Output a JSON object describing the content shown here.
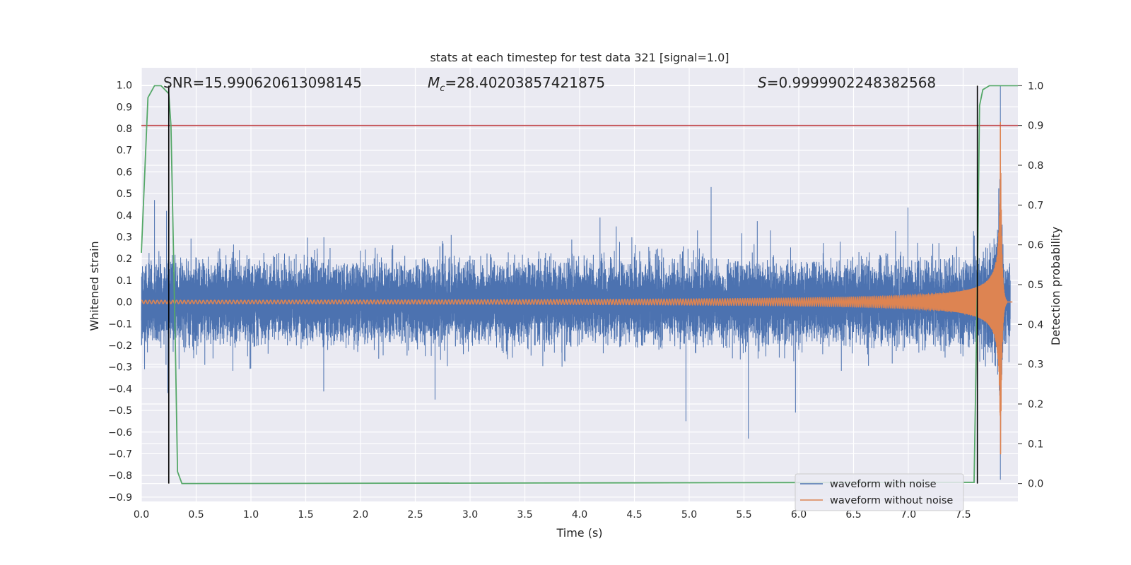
{
  "chart_data": {
    "type": "line",
    "title": "stats at each timestep for test data 321 [signal=1.0]",
    "xlabel": "Time (s)",
    "ylabel": "Whitened strain",
    "y2label": "Detection probability",
    "xlim": [
      0.0,
      8.0
    ],
    "ylim": [
      -0.92,
      1.08
    ],
    "y2lim": [
      -0.045,
      1.045
    ],
    "grid": true,
    "x_ticks": [
      "0.0",
      "0.5",
      "1.0",
      "1.5",
      "2.0",
      "2.5",
      "3.0",
      "3.5",
      "4.0",
      "4.5",
      "5.0",
      "5.5",
      "6.0",
      "6.5",
      "7.0",
      "7.5"
    ],
    "y_ticks": [
      "1.0",
      "0.9",
      "0.8",
      "0.7",
      "0.6",
      "0.5",
      "0.4",
      "0.3",
      "0.2",
      "0.1",
      "0.0",
      "−0.1",
      "−0.2",
      "−0.3",
      "−0.4",
      "−0.5",
      "−0.6",
      "−0.7",
      "−0.8",
      "−0.9"
    ],
    "y2_ticks": [
      "1.0",
      "0.9",
      "0.8",
      "0.7",
      "0.6",
      "0.5",
      "0.4",
      "0.3",
      "0.2",
      "0.1",
      "0.0"
    ],
    "annotations": {
      "snr": "SNR=15.990620613098145",
      "mc_symbol": "M",
      "mc_sub": "c",
      "mc_value": "=28.40203857421875",
      "s_symbol": "S",
      "s_value": "=0.9999902248382568"
    },
    "threshold_probability": 0.9,
    "vertical_markers_s": [
      0.25,
      7.63
    ],
    "series": [
      {
        "name": "waveform with noise",
        "color": "#4c72b0",
        "noise_sigma": 0.08,
        "notable_spikes": [
          [
            0.12,
            0.47
          ],
          [
            0.24,
            -0.42
          ],
          [
            0.23,
            0.42
          ],
          [
            2.68,
            -0.45
          ],
          [
            5.2,
            0.53
          ],
          [
            4.97,
            -0.55
          ],
          [
            5.54,
            -0.63
          ],
          [
            5.97,
            -0.51
          ],
          [
            7.84,
            1.0
          ],
          [
            7.84,
            -0.82
          ]
        ]
      },
      {
        "name": "waveform without noise",
        "color": "#dd8452",
        "chirp": {
          "merger_time": 7.84,
          "peak_amplitude": 0.83,
          "ringdown_end": 7.9
        }
      },
      {
        "name": "detection probability",
        "color": "#55a868",
        "axis": "right",
        "x": [
          0.0,
          0.06,
          0.12,
          0.18,
          0.25,
          0.27,
          0.31,
          0.33,
          0.37,
          0.42,
          7.6,
          7.63,
          7.65,
          7.68,
          7.74,
          7.78,
          8.0
        ],
        "values": [
          0.58,
          0.97,
          1.0,
          1.0,
          0.98,
          0.9,
          0.35,
          0.03,
          0.0,
          0.0,
          0.003,
          0.5,
          0.95,
          0.99,
          1.0,
          1.0,
          1.0
        ]
      }
    ],
    "threshold_color": "#c44e52"
  }
}
